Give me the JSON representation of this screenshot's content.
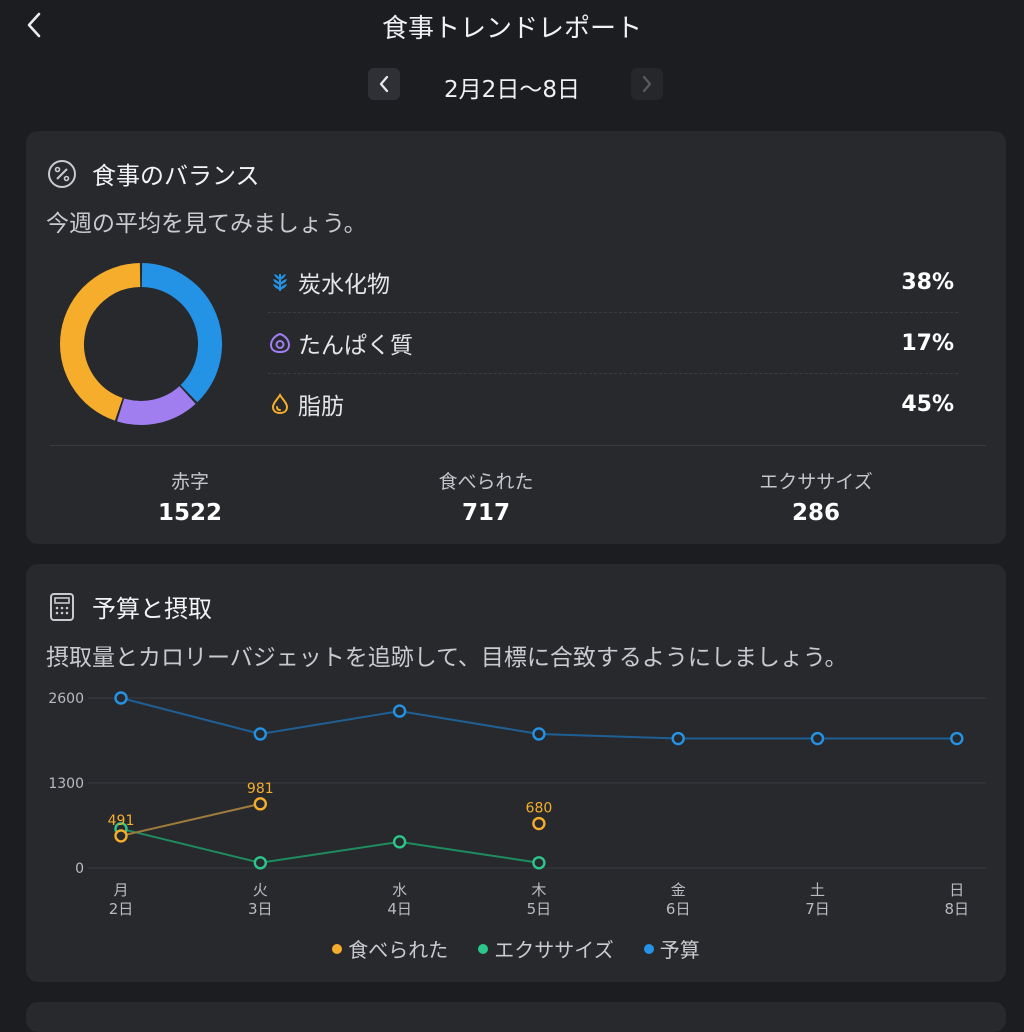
{
  "header": {
    "title": "食事トレンドレポート",
    "back_icon": "chevron-left-icon"
  },
  "date_nav": {
    "label": "2月2日〜8日",
    "prev_icon": "chevron-left-icon",
    "next_icon": "chevron-right-icon"
  },
  "balance": {
    "icon": "percent-icon",
    "title": "食事のバランス",
    "subtitle": "今週の平均を見てみましょう。",
    "macros": [
      {
        "name": "炭水化物",
        "value": "38%",
        "percent": 38,
        "icon": "wheat-icon",
        "color": "#2493e6"
      },
      {
        "name": "たんぱく質",
        "value": "17%",
        "percent": 17,
        "icon": "egg-icon",
        "color": "#a07ef0"
      },
      {
        "name": "脂肪",
        "value": "45%",
        "percent": 45,
        "icon": "droplet-icon",
        "color": "#f6ad2c"
      }
    ],
    "stats": [
      {
        "label": "赤字",
        "value": "1522"
      },
      {
        "label": "食べられた",
        "value": "717"
      },
      {
        "label": "エクササイズ",
        "value": "286"
      }
    ]
  },
  "budget": {
    "icon": "calculator-icon",
    "title": "予算と摂取",
    "subtitle": "摂取量とカロリーバジェットを追跡して、目標に合致するようにしましょう。"
  },
  "chart_data": {
    "type": "line",
    "categories": [
      [
        "月",
        "2日"
      ],
      [
        "火",
        "3日"
      ],
      [
        "水",
        "4日"
      ],
      [
        "木",
        "5日"
      ],
      [
        "金",
        "6日"
      ],
      [
        "土",
        "7日"
      ],
      [
        "日",
        "8日"
      ]
    ],
    "ylim": [
      0,
      2600
    ],
    "yticks": [
      "2600",
      "1300",
      "0"
    ],
    "grid": true,
    "legend_position": "bottom",
    "series": [
      {
        "name": "食べられた",
        "color": "#f6ad2c",
        "line_color": "#9e7c3c",
        "values": [
          491,
          981,
          null,
          680,
          null,
          null,
          null
        ],
        "labels": [
          "491",
          "981",
          null,
          "680",
          null,
          null,
          null
        ]
      },
      {
        "name": "エクササイズ",
        "color": "#2cc68a",
        "line_color": "#1f8c60",
        "values": [
          600,
          80,
          400,
          80,
          null,
          null,
          null
        ]
      },
      {
        "name": "予算",
        "color": "#2493e6",
        "line_color": "#1f5f93",
        "values": [
          2600,
          2050,
          2400,
          2050,
          1980,
          1980,
          1980
        ]
      }
    ]
  }
}
